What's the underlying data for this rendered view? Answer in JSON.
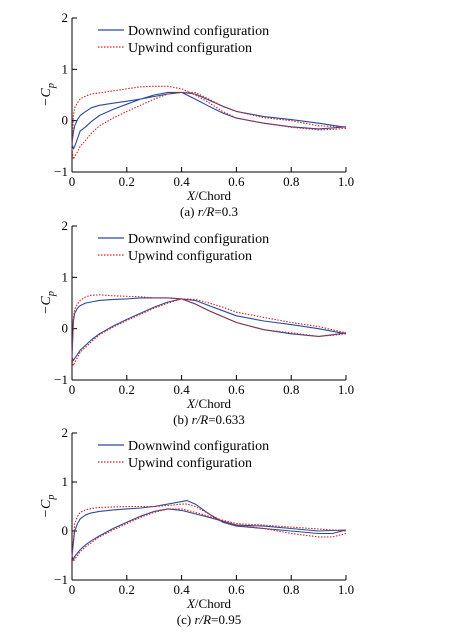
{
  "colors": {
    "downwind": "#2a4a9a",
    "upwind": "#d42020",
    "axis": "#000000"
  },
  "chart_data": [
    {
      "type": "line",
      "ylabel": "−C",
      "ylabel_sub": "p",
      "xlabel_italic": "X",
      "xlabel_rest": "/Chord",
      "caption_prefix": "(a) ",
      "caption_var": "r/R",
      "caption_value": "=0.3",
      "xlim": [
        0,
        1.0
      ],
      "ylim": [
        -1,
        2
      ],
      "xticks": [
        "0",
        "0.2",
        "0.4",
        "0.6",
        "0.8",
        "1.0"
      ],
      "yticks": [
        "−1",
        "0",
        "1",
        "2"
      ],
      "legend_placement": "top-center",
      "series": [
        {
          "name": "Downwind configuration",
          "style": "solid",
          "color_key": "downwind",
          "x": [
            1.0,
            0.95,
            0.9,
            0.8,
            0.7,
            0.6,
            0.55,
            0.5,
            0.45,
            0.4,
            0.35,
            0.3,
            0.25,
            0.2,
            0.15,
            0.1,
            0.07,
            0.05,
            0.03,
            0.02,
            0.01,
            0.005,
            0.0,
            0.005,
            0.01,
            0.02,
            0.03,
            0.05,
            0.07,
            0.1,
            0.15,
            0.2,
            0.25,
            0.3,
            0.35,
            0.4,
            0.45,
            0.5,
            0.55,
            0.6,
            0.7,
            0.8,
            0.9,
            1.0
          ],
          "y": [
            -0.12,
            -0.14,
            -0.16,
            -0.12,
            -0.05,
            0.05,
            0.15,
            0.28,
            0.42,
            0.55,
            0.52,
            0.47,
            0.42,
            0.38,
            0.34,
            0.3,
            0.25,
            0.18,
            0.1,
            0.02,
            -0.1,
            -0.22,
            -0.45,
            -0.55,
            -0.5,
            -0.35,
            -0.2,
            -0.12,
            -0.02,
            0.1,
            0.22,
            0.32,
            0.42,
            0.5,
            0.55,
            0.55,
            0.52,
            0.4,
            0.28,
            0.18,
            0.08,
            0.02,
            -0.05,
            -0.13
          ]
        },
        {
          "name": "Upwind configuration",
          "style": "dotted",
          "color_key": "upwind",
          "x": [
            1.0,
            0.95,
            0.9,
            0.8,
            0.7,
            0.6,
            0.55,
            0.5,
            0.45,
            0.4,
            0.35,
            0.3,
            0.25,
            0.2,
            0.15,
            0.1,
            0.07,
            0.05,
            0.03,
            0.02,
            0.01,
            0.005,
            0.0,
            0.005,
            0.01,
            0.02,
            0.03,
            0.05,
            0.07,
            0.1,
            0.15,
            0.2,
            0.25,
            0.3,
            0.35,
            0.4,
            0.45,
            0.5,
            0.55,
            0.6,
            0.7,
            0.8,
            0.9,
            1.0
          ],
          "y": [
            -0.15,
            -0.17,
            -0.18,
            -0.13,
            -0.05,
            0.05,
            0.18,
            0.35,
            0.5,
            0.62,
            0.67,
            0.67,
            0.66,
            0.62,
            0.58,
            0.54,
            0.52,
            0.48,
            0.42,
            0.35,
            0.25,
            0.1,
            -0.55,
            -0.75,
            -0.7,
            -0.6,
            -0.5,
            -0.38,
            -0.25,
            -0.1,
            0.05,
            0.18,
            0.3,
            0.42,
            0.52,
            0.55,
            0.55,
            0.42,
            0.28,
            0.18,
            0.06,
            0.0,
            -0.1,
            -0.12
          ]
        }
      ]
    },
    {
      "type": "line",
      "ylabel": "−C",
      "ylabel_sub": "p",
      "xlabel_italic": "X",
      "xlabel_rest": "/Chord",
      "caption_prefix": "(b) ",
      "caption_var": "r/R",
      "caption_value": "=0.633",
      "xlim": [
        0,
        1.0
      ],
      "ylim": [
        -1,
        2
      ],
      "xticks": [
        "0",
        "0.2",
        "0.4",
        "0.6",
        "0.8",
        "1.0"
      ],
      "yticks": [
        "−1",
        "0",
        "1",
        "2"
      ],
      "legend_placement": "top-center",
      "series": [
        {
          "name": "Downwind configuration",
          "style": "solid",
          "color_key": "downwind",
          "x": [
            1.0,
            0.95,
            0.9,
            0.8,
            0.7,
            0.6,
            0.5,
            0.45,
            0.4,
            0.35,
            0.3,
            0.25,
            0.2,
            0.15,
            0.1,
            0.07,
            0.05,
            0.03,
            0.02,
            0.01,
            0.005,
            0.0,
            0.005,
            0.01,
            0.02,
            0.03,
            0.05,
            0.07,
            0.1,
            0.15,
            0.2,
            0.25,
            0.3,
            0.35,
            0.4,
            0.45,
            0.5,
            0.55,
            0.6,
            0.7,
            0.8,
            0.9,
            1.0
          ],
          "y": [
            -0.08,
            -0.12,
            -0.15,
            -0.1,
            -0.02,
            0.12,
            0.35,
            0.48,
            0.58,
            0.6,
            0.6,
            0.6,
            0.58,
            0.57,
            0.55,
            0.52,
            0.5,
            0.45,
            0.4,
            0.3,
            0.15,
            -0.55,
            -0.62,
            -0.58,
            -0.5,
            -0.42,
            -0.32,
            -0.22,
            -0.1,
            0.05,
            0.18,
            0.3,
            0.42,
            0.52,
            0.58,
            0.55,
            0.45,
            0.35,
            0.25,
            0.15,
            0.08,
            0.0,
            -0.1
          ]
        },
        {
          "name": "Upwind configuration",
          "style": "dotted",
          "color_key": "upwind",
          "x": [
            1.0,
            0.95,
            0.9,
            0.8,
            0.7,
            0.6,
            0.5,
            0.45,
            0.4,
            0.35,
            0.3,
            0.25,
            0.2,
            0.15,
            0.1,
            0.07,
            0.05,
            0.03,
            0.02,
            0.01,
            0.005,
            0.0,
            0.005,
            0.01,
            0.02,
            0.03,
            0.05,
            0.07,
            0.1,
            0.15,
            0.2,
            0.25,
            0.3,
            0.35,
            0.4,
            0.45,
            0.5,
            0.55,
            0.6,
            0.7,
            0.8,
            0.9,
            1.0
          ],
          "y": [
            -0.1,
            -0.13,
            -0.15,
            -0.08,
            -0.02,
            0.12,
            0.35,
            0.48,
            0.58,
            0.6,
            0.6,
            0.62,
            0.63,
            0.64,
            0.66,
            0.65,
            0.62,
            0.55,
            0.48,
            0.38,
            0.2,
            -0.6,
            -0.72,
            -0.66,
            -0.56,
            -0.46,
            -0.36,
            -0.26,
            -0.12,
            0.03,
            0.16,
            0.28,
            0.4,
            0.5,
            0.58,
            0.57,
            0.5,
            0.42,
            0.32,
            0.22,
            0.12,
            0.04,
            -0.08
          ]
        }
      ]
    },
    {
      "type": "line",
      "ylabel": "−C",
      "ylabel_sub": "p",
      "xlabel_italic": "X",
      "xlabel_rest": "/Chord",
      "caption_prefix": "(c) ",
      "caption_var": "r/R",
      "caption_value": "=0.95",
      "xlim": [
        0,
        1.0
      ],
      "ylim": [
        -1,
        2
      ],
      "xticks": [
        "0",
        "0.2",
        "0.4",
        "0.6",
        "0.8",
        "1.0"
      ],
      "yticks": [
        "−1",
        "0",
        "1",
        "2"
      ],
      "legend_placement": "top-center",
      "series": [
        {
          "name": "Downwind configuration",
          "style": "solid",
          "color_key": "downwind",
          "x": [
            1.0,
            0.95,
            0.9,
            0.8,
            0.7,
            0.6,
            0.55,
            0.5,
            0.45,
            0.42,
            0.4,
            0.35,
            0.3,
            0.25,
            0.2,
            0.15,
            0.1,
            0.07,
            0.05,
            0.03,
            0.02,
            0.01,
            0.0,
            0.005,
            0.01,
            0.02,
            0.03,
            0.05,
            0.07,
            0.1,
            0.15,
            0.2,
            0.25,
            0.3,
            0.35,
            0.4,
            0.45,
            0.5,
            0.55,
            0.6,
            0.7,
            0.8,
            0.9,
            1.0
          ],
          "y": [
            0.02,
            -0.05,
            -0.05,
            0.0,
            0.05,
            0.1,
            0.18,
            0.35,
            0.55,
            0.62,
            0.6,
            0.55,
            0.5,
            0.47,
            0.45,
            0.43,
            0.4,
            0.37,
            0.33,
            0.25,
            0.15,
            0.0,
            -0.5,
            -0.58,
            -0.52,
            -0.45,
            -0.38,
            -0.28,
            -0.2,
            -0.1,
            0.05,
            0.18,
            0.3,
            0.4,
            0.45,
            0.42,
            0.35,
            0.28,
            0.2,
            0.12,
            0.1,
            0.05,
            0.0,
            0.02
          ]
        },
        {
          "name": "Upwind configuration",
          "style": "dotted",
          "color_key": "upwind",
          "x": [
            1.0,
            0.95,
            0.9,
            0.8,
            0.7,
            0.6,
            0.55,
            0.5,
            0.45,
            0.42,
            0.4,
            0.35,
            0.3,
            0.25,
            0.2,
            0.15,
            0.1,
            0.07,
            0.05,
            0.03,
            0.02,
            0.01,
            0.0,
            0.005,
            0.01,
            0.02,
            0.03,
            0.05,
            0.07,
            0.1,
            0.15,
            0.2,
            0.25,
            0.3,
            0.35,
            0.4,
            0.45,
            0.5,
            0.55,
            0.6,
            0.7,
            0.8,
            0.9,
            1.0
          ],
          "y": [
            -0.05,
            -0.12,
            -0.12,
            -0.05,
            0.05,
            0.12,
            0.2,
            0.35,
            0.5,
            0.55,
            0.55,
            0.52,
            0.5,
            0.5,
            0.5,
            0.49,
            0.48,
            0.46,
            0.43,
            0.38,
            0.3,
            0.15,
            -0.55,
            -0.62,
            -0.58,
            -0.5,
            -0.42,
            -0.32,
            -0.24,
            -0.12,
            0.02,
            0.15,
            0.28,
            0.38,
            0.45,
            0.45,
            0.38,
            0.3,
            0.22,
            0.15,
            0.12,
            0.08,
            0.04,
            0.0
          ]
        }
      ]
    }
  ]
}
